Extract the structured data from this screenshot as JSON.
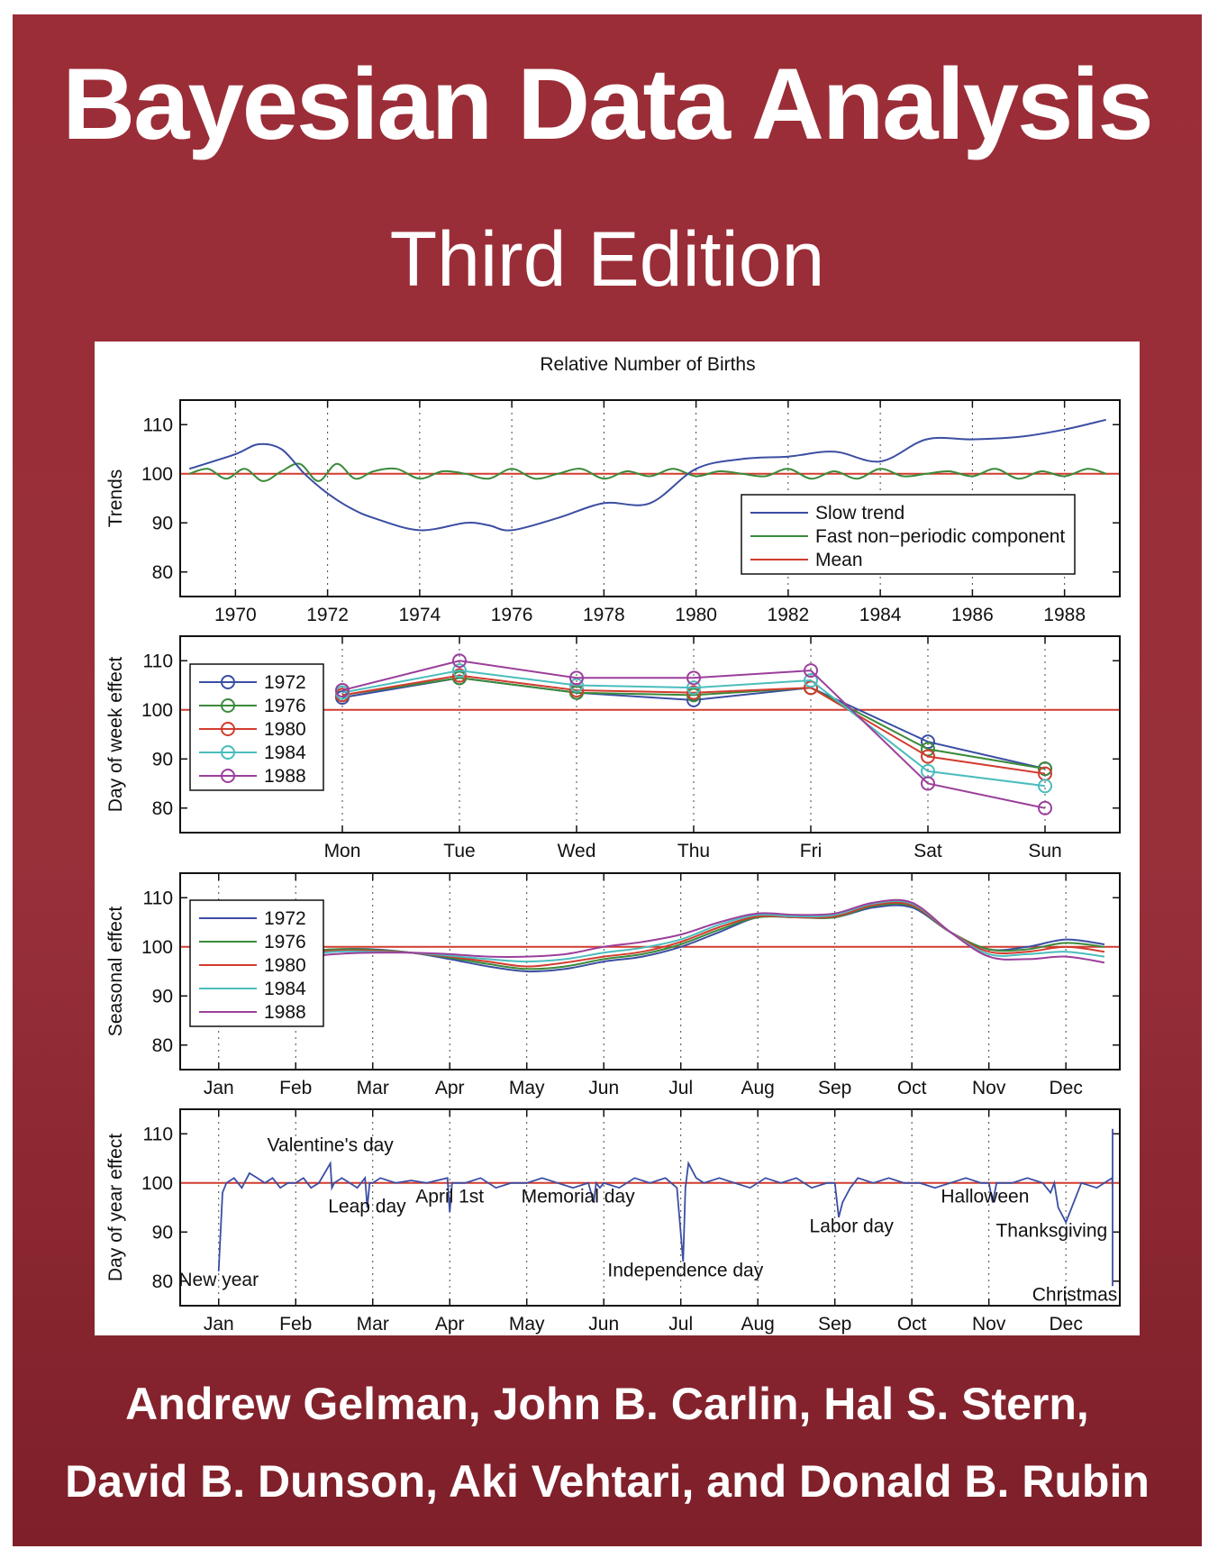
{
  "cover": {
    "title": "Bayesian Data Analysis",
    "edition": "Third Edition",
    "authors_line1": "Andrew Gelman, John B. Carlin, Hal S. Stern,",
    "authors_line2": "David B. Dunson, Aki Vehtari, and Donald B. Rubin",
    "background_color": "#9b2d37"
  },
  "figure": {
    "title": "Relative Number of Births"
  },
  "chart_data": [
    {
      "type": "line",
      "ylabel": "Trends",
      "xlim": [
        1968.8,
        1989.2
      ],
      "ylim": [
        75,
        115
      ],
      "yticks": [
        80,
        90,
        100,
        110
      ],
      "xticks": [
        1970,
        1972,
        1974,
        1976,
        1978,
        1980,
        1982,
        1984,
        1986,
        1988
      ],
      "legend_position": "bottom-right",
      "series": [
        {
          "name": "Slow trend",
          "color": "#3b4ea3",
          "x": [
            1969,
            1970,
            1970.5,
            1971,
            1971.5,
            1972,
            1972.5,
            1973,
            1974,
            1975,
            1975.5,
            1976,
            1977,
            1978,
            1979,
            1980,
            1981,
            1982,
            1983,
            1984,
            1985,
            1986,
            1987,
            1988,
            1988.9
          ],
          "y": [
            101,
            104,
            106,
            105,
            100,
            96,
            93,
            91,
            88.5,
            90,
            89.5,
            88.5,
            91,
            94,
            94,
            101,
            103,
            103.5,
            104.5,
            102.5,
            107,
            107,
            107.5,
            109,
            111
          ]
        },
        {
          "name": "Fast non−periodic component",
          "color": "#3b8a3b",
          "x": [
            1969,
            1969.4,
            1969.8,
            1970.2,
            1970.6,
            1971,
            1971.4,
            1971.8,
            1972.2,
            1972.6,
            1973,
            1973.5,
            1974,
            1974.5,
            1975,
            1975.5,
            1976,
            1976.5,
            1977,
            1977.5,
            1978,
            1978.5,
            1979,
            1979.5,
            1980,
            1980.5,
            1981,
            1981.5,
            1982,
            1982.5,
            1983,
            1983.5,
            1984,
            1984.5,
            1985,
            1985.5,
            1986,
            1986.5,
            1987,
            1987.5,
            1988,
            1988.5,
            1988.9
          ],
          "y": [
            100,
            101,
            99,
            101,
            98.5,
            100.5,
            102,
            98.5,
            102,
            99,
            100.5,
            101,
            99,
            100.5,
            100,
            99,
            101,
            99,
            100,
            101,
            99,
            100.5,
            99.5,
            101,
            99.5,
            100.5,
            100,
            99.5,
            101,
            99,
            100.5,
            99,
            101,
            99.5,
            100,
            100.5,
            99.5,
            101,
            99,
            100.5,
            99.5,
            101,
            100
          ]
        },
        {
          "name": "Mean",
          "color": "#d23b2e",
          "x": [
            1968.8,
            1989.2
          ],
          "y": [
            100,
            100
          ]
        }
      ]
    },
    {
      "type": "line",
      "ylabel": "Day of week effect",
      "categories": [
        "Mon",
        "Tue",
        "Wed",
        "Thu",
        "Fri",
        "Sat",
        "Sun"
      ],
      "ylim": [
        75,
        115
      ],
      "yticks": [
        80,
        90,
        100,
        110
      ],
      "legend_position": "left",
      "markers": "circle",
      "series": [
        {
          "name": "1972",
          "color": "#3b4ea3",
          "values": [
            102.5,
            106.5,
            103.5,
            102,
            104.5,
            93.5,
            88
          ]
        },
        {
          "name": "1976",
          "color": "#3b8a3b",
          "values": [
            103,
            106.5,
            103.5,
            103,
            104.5,
            92,
            88
          ]
        },
        {
          "name": "1980",
          "color": "#d23b2e",
          "values": [
            103,
            107,
            104,
            103.5,
            104.5,
            90.5,
            87
          ]
        },
        {
          "name": "1984",
          "color": "#4bbdbd",
          "values": [
            103.5,
            108,
            105,
            104.5,
            106,
            87.5,
            84.5
          ]
        },
        {
          "name": "1988",
          "color": "#9b3f9b",
          "values": [
            104,
            110,
            106.5,
            106.5,
            108,
            85,
            80
          ]
        }
      ],
      "reference_line": 100
    },
    {
      "type": "line",
      "ylabel": "Seasonal effect",
      "xticklabels": [
        "Jan",
        "Feb",
        "Mar",
        "Apr",
        "May",
        "Jun",
        "Jul",
        "Aug",
        "Sep",
        "Oct",
        "Nov",
        "Dec"
      ],
      "xlim": [
        0.5,
        12.7
      ],
      "ylim": [
        75,
        115
      ],
      "yticks": [
        80,
        90,
        100,
        110
      ],
      "legend_position": "left",
      "x": [
        1,
        1.5,
        2,
        2.5,
        3,
        3.5,
        4,
        4.5,
        5,
        5.5,
        6,
        6.5,
        7,
        7.5,
        8,
        8.5,
        9,
        9.5,
        10,
        10.5,
        11,
        11.5,
        12,
        12.5,
        13
      ],
      "series": [
        {
          "name": "1972",
          "color": "#3b4ea3",
          "values": [
            98,
            98,
            99,
            99.5,
            99.5,
            98.8,
            97.5,
            96,
            95,
            95.5,
            97,
            98,
            100,
            103,
            106,
            106,
            106,
            108,
            108,
            103,
            99.5,
            100,
            101.5,
            100.5,
            97.5
          ]
        },
        {
          "name": "1976",
          "color": "#3b8a3b",
          "values": [
            97.5,
            97.5,
            98.8,
            99.5,
            99.4,
            98.8,
            97.8,
            96.5,
            95.5,
            96,
            97.5,
            98.5,
            100.5,
            103.5,
            106,
            106,
            106,
            108.3,
            108.3,
            103,
            99.5,
            99.5,
            100.8,
            100,
            96.8
          ]
        },
        {
          "name": "1980",
          "color": "#d23b2e",
          "values": [
            96.5,
            97,
            98.5,
            99.2,
            99.2,
            98.8,
            98,
            97,
            96,
            96.8,
            98,
            99,
            101,
            104,
            106.2,
            106,
            106.2,
            108.5,
            108.5,
            103,
            99,
            99,
            100,
            99,
            96
          ]
        },
        {
          "name": "1984",
          "color": "#4bbdbd",
          "values": [
            96,
            96.5,
            98,
            99,
            99,
            98.8,
            98.2,
            97.5,
            97,
            97.5,
            98.8,
            99.8,
            101.5,
            104.5,
            106.5,
            106.2,
            106.5,
            108.8,
            108.8,
            103,
            98.5,
            98.5,
            99,
            98,
            95
          ]
        },
        {
          "name": "1988",
          "color": "#9b3f9b",
          "values": [
            95,
            95.5,
            97.5,
            98.5,
            98.8,
            98.8,
            98.5,
            98,
            98,
            98.5,
            100,
            101,
            102.5,
            105,
            106.8,
            106.5,
            106.8,
            109,
            109,
            103,
            98,
            97.5,
            98,
            96.8,
            94
          ]
        }
      ],
      "reference_line": 100
    },
    {
      "type": "line",
      "ylabel": "Day of year effect",
      "xticklabels": [
        "Jan",
        "Feb",
        "Mar",
        "Apr",
        "May",
        "Jun",
        "Jul",
        "Aug",
        "Sep",
        "Oct",
        "Nov",
        "Dec"
      ],
      "xlim": [
        0.5,
        12.7
      ],
      "ylim": [
        75,
        115
      ],
      "yticks": [
        80,
        90,
        100,
        110
      ],
      "series": [
        {
          "name": "",
          "color": "#3b4ea3",
          "x": [
            1.0,
            1.05,
            1.1,
            1.2,
            1.3,
            1.4,
            1.5,
            1.6,
            1.7,
            1.8,
            1.9,
            2.0,
            2.1,
            2.2,
            2.3,
            2.45,
            2.47,
            2.5,
            2.6,
            2.7,
            2.8,
            2.9,
            2.93,
            2.96,
            3.0,
            3.1,
            3.3,
            3.5,
            3.7,
            3.97,
            4.0,
            4.03,
            4.2,
            4.4,
            4.6,
            4.8,
            5.0,
            5.2,
            5.4,
            5.6,
            5.8,
            5.87,
            5.9,
            5.95,
            6.0,
            6.2,
            6.4,
            6.6,
            6.8,
            6.95,
            7.03,
            7.06,
            7.1,
            7.2,
            7.3,
            7.5,
            7.7,
            7.9,
            8.1,
            8.3,
            8.5,
            8.7,
            8.9,
            9.0,
            9.05,
            9.1,
            9.2,
            9.3,
            9.5,
            9.7,
            9.9,
            10.1,
            10.3,
            10.5,
            10.7,
            10.9,
            11.0,
            11.05,
            11.1,
            11.3,
            11.5,
            11.7,
            11.8,
            11.85,
            11.9,
            12.0,
            12.2,
            12.4,
            12.5,
            12.6,
            12.7,
            12.75,
            12.8,
            12.85,
            12.9,
            12.95,
            13.0,
            13.1,
            13.2,
            13.25,
            13.3
          ],
          "y": [
            82,
            98,
            100,
            101,
            99,
            102,
            101,
            100,
            101,
            99,
            100,
            100,
            101,
            99,
            100,
            104,
            99,
            100,
            101,
            100,
            99,
            101,
            95,
            100,
            100,
            101,
            100,
            100.5,
            100,
            101,
            94,
            100,
            100,
            101,
            99,
            100,
            100,
            101,
            100,
            99,
            100,
            96,
            100,
            99,
            100,
            99,
            101,
            100,
            101,
            99,
            84,
            99,
            104,
            101,
            100,
            101,
            100,
            99,
            101,
            100,
            101,
            99,
            100,
            100,
            93,
            96,
            99,
            101,
            100,
            101,
            100,
            100,
            99,
            100,
            101,
            100,
            100,
            96,
            100,
            100,
            101,
            100,
            98,
            100,
            95,
            92,
            100,
            99,
            100,
            101,
            99,
            100,
            102,
            106,
            105,
            100,
            79,
            100,
            106,
            111,
            104
          ]
        },
        {
          "name": "Mean",
          "color": "#d23b2e",
          "x": [
            0.5,
            13.5
          ],
          "y": [
            100,
            100
          ]
        }
      ],
      "annotations": [
        {
          "text": "Valentine's day",
          "x": 2.45,
          "y": 105
        },
        {
          "text": "Leap day",
          "x": 2.95,
          "y": 94
        },
        {
          "text": "April 1st",
          "x": 4.0,
          "y": 96
        },
        {
          "text": "Memorial day",
          "x": 5.9,
          "y": 96
        },
        {
          "text": "Independence day",
          "x": 7.06,
          "y": 81
        },
        {
          "text": "Labor day",
          "x": 9.1,
          "y": 90
        },
        {
          "text": "Halloween",
          "x": 10.95,
          "y": 96
        },
        {
          "text": "Thanksgiving",
          "x": 11.85,
          "y": 89
        },
        {
          "text": "New year",
          "x": 1.0,
          "y": 79
        },
        {
          "text": "Christmas",
          "x": 13.0,
          "y": 76
        }
      ]
    }
  ]
}
